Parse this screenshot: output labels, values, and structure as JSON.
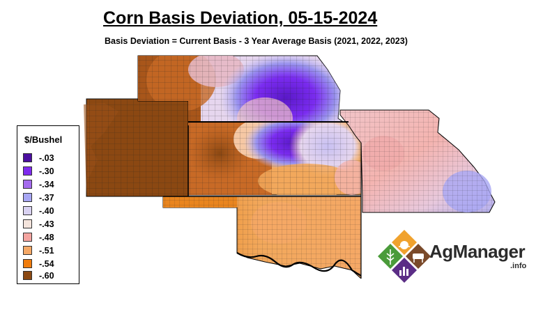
{
  "title": "Corn Basis Deviation, 05-15-2024",
  "subtitle": "Basis Deviation = Current Basis - 3 Year Average Basis (2021, 2022, 2023)",
  "legend": {
    "title": "$/Bushel",
    "items": [
      {
        "label": "-.03",
        "color": "#4b0fa0"
      },
      {
        "label": "-.30",
        "color": "#7f2bee"
      },
      {
        "label": "-.34",
        "color": "#a56bee"
      },
      {
        "label": "-.37",
        "color": "#a7a6f4"
      },
      {
        "label": "-.40",
        "color": "#d9d2f2"
      },
      {
        "label": "-.43",
        "color": "#f4e4dc"
      },
      {
        "label": "-.48",
        "color": "#f4a4a0"
      },
      {
        "label": "-.51",
        "color": "#f5a866"
      },
      {
        "label": "-.54",
        "color": "#f07c0c"
      },
      {
        "label": "-.60",
        "color": "#8b4812"
      }
    ]
  },
  "logo": {
    "name": "AgManager",
    "suffix": ".info",
    "colors": {
      "orange": "#f0a22e",
      "brown": "#7a4a2a",
      "green": "#4a9b3a",
      "purple": "#5b2d86"
    }
  },
  "map": {
    "regions": [
      "Colorado (east)",
      "Nebraska",
      "Kansas",
      "Oklahoma",
      "Missouri"
    ],
    "gradient_colors": {
      "dark_brown": "#8b4812",
      "brown": "#a8561a",
      "orange": "#e9851f",
      "light_orange": "#f2a85c",
      "peach": "#f6c8a4",
      "pink": "#f4b4b0",
      "lavender": "#c8c0f2",
      "blue_purple": "#9a94ee",
      "purple": "#7b2cf0",
      "dark_purple": "#5a18c8"
    }
  }
}
